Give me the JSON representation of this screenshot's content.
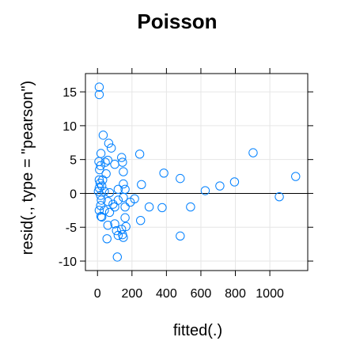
{
  "chart_data": {
    "type": "scatter",
    "title": "Poisson",
    "xlabel": "fitted(.)",
    "ylabel": "resid(., type = \"pearson\")",
    "xlim": [
      -70,
      1220
    ],
    "ylim": [
      -11.4,
      17.7
    ],
    "x_ticks": [
      0,
      200,
      400,
      600,
      800,
      1000
    ],
    "y_ticks": [
      -10,
      -5,
      0,
      5,
      10,
      15
    ],
    "grid": true,
    "reference_line_y": 0,
    "colors": {
      "points": "#0080ff",
      "grid": "#e6e6e6",
      "frame": "#000000",
      "refline": "#000000"
    },
    "points": [
      [
        10,
        15.7
      ],
      [
        10,
        14.6
      ],
      [
        33,
        8.6
      ],
      [
        65,
        7.4
      ],
      [
        80,
        6.7
      ],
      [
        20,
        5.9
      ],
      [
        140,
        5.3
      ],
      [
        245,
        5.8
      ],
      [
        903,
        6.0
      ],
      [
        8,
        4.7
      ],
      [
        45,
        4.6
      ],
      [
        60,
        4.9
      ],
      [
        100,
        4.3
      ],
      [
        145,
        4.6
      ],
      [
        18,
        4.1
      ],
      [
        12,
        3.5
      ],
      [
        150,
        3.2
      ],
      [
        385,
        3.0
      ],
      [
        50,
        2.9
      ],
      [
        10,
        2.0
      ],
      [
        30,
        2.0
      ],
      [
        480,
        2.2
      ],
      [
        1150,
        2.5
      ],
      [
        15,
        1.5
      ],
      [
        25,
        1.1
      ],
      [
        150,
        1.4
      ],
      [
        255,
        1.3
      ],
      [
        710,
        1.1
      ],
      [
        795,
        1.7
      ],
      [
        10,
        0.8
      ],
      [
        5,
        0.3
      ],
      [
        40,
        0.3
      ],
      [
        70,
        0.1
      ],
      [
        120,
        0.6
      ],
      [
        160,
        0.6
      ],
      [
        215,
        -0.8
      ],
      [
        625,
        0.4
      ],
      [
        1055,
        -0.5
      ],
      [
        18,
        -0.3
      ],
      [
        22,
        -1.0
      ],
      [
        60,
        -1.2
      ],
      [
        90,
        -1.6
      ],
      [
        120,
        -1.0
      ],
      [
        150,
        -0.6
      ],
      [
        190,
        -1.3
      ],
      [
        18,
        -1.8
      ],
      [
        100,
        -2.0
      ],
      [
        160,
        -2.0
      ],
      [
        300,
        -2.0
      ],
      [
        375,
        -2.1
      ],
      [
        540,
        -2.0
      ],
      [
        10,
        -2.5
      ],
      [
        40,
        -2.5
      ],
      [
        70,
        -2.8
      ],
      [
        20,
        -3.4
      ],
      [
        25,
        -3.5
      ],
      [
        160,
        -3.6
      ],
      [
        250,
        -4.0
      ],
      [
        60,
        -4.7
      ],
      [
        100,
        -4.5
      ],
      [
        165,
        -4.9
      ],
      [
        110,
        -5.5
      ],
      [
        140,
        -5.3
      ],
      [
        120,
        -6.2
      ],
      [
        145,
        -6.1
      ],
      [
        150,
        -6.5
      ],
      [
        55,
        -6.7
      ],
      [
        480,
        -6.3
      ],
      [
        115,
        -9.4
      ]
    ]
  }
}
